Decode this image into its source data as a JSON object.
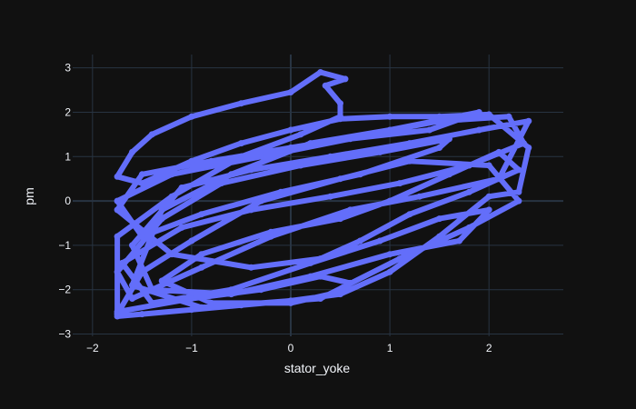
{
  "chart_data": {
    "type": "line",
    "title": "",
    "xlabel": "stator_yoke",
    "ylabel": "pm",
    "xlim": [
      -2.2,
      2.75
    ],
    "ylim": [
      -3.05,
      3.3
    ],
    "x_ticks": [
      -2,
      -1,
      0,
      1,
      2
    ],
    "y_ticks": [
      -3,
      -2,
      -1,
      0,
      1,
      2,
      3
    ],
    "grid": true,
    "legend": "none",
    "series": [
      {
        "color": "#636efa",
        "points": [
          [
            -1.75,
            -2.6
          ],
          [
            -1.5,
            -2.55
          ],
          [
            -1.0,
            -2.45
          ],
          [
            -0.5,
            -2.35
          ],
          [
            0.0,
            -2.25
          ],
          [
            0.5,
            -2.1
          ],
          [
            1.0,
            -1.6
          ],
          [
            1.5,
            -0.8
          ],
          [
            2.0,
            0.1
          ],
          [
            2.3,
            0.2
          ],
          [
            2.4,
            1.2
          ],
          [
            2.0,
            1.95
          ],
          [
            1.5,
            1.9
          ],
          [
            1.0,
            1.9
          ],
          [
            0.5,
            1.85
          ],
          [
            0.0,
            1.6
          ],
          [
            -0.5,
            1.3
          ],
          [
            -1.0,
            0.9
          ],
          [
            -1.5,
            0.4
          ],
          [
            -1.75,
            0.55
          ],
          [
            -1.6,
            1.1
          ],
          [
            -1.4,
            1.5
          ],
          [
            -1.0,
            1.9
          ],
          [
            -0.5,
            2.2
          ],
          [
            0.0,
            2.45
          ],
          [
            0.3,
            2.9
          ],
          [
            0.55,
            2.75
          ],
          [
            0.35,
            2.6
          ],
          [
            0.5,
            2.2
          ],
          [
            0.5,
            1.9
          ],
          [
            0.1,
            1.5
          ],
          [
            -0.5,
            1.0
          ],
          [
            -1.2,
            0.1
          ],
          [
            -1.75,
            -0.8
          ],
          [
            -1.75,
            -2.5
          ],
          [
            -1.0,
            -2.2
          ],
          [
            -0.3,
            -2.0
          ],
          [
            0.3,
            -1.7
          ],
          [
            0.6,
            -1.85
          ],
          [
            0.4,
            -2.1
          ],
          [
            0.0,
            -2.3
          ],
          [
            -0.8,
            -2.3
          ],
          [
            -1.3,
            -1.8
          ],
          [
            -0.9,
            -1.2
          ],
          [
            -0.2,
            -0.7
          ],
          [
            0.5,
            -0.4
          ],
          [
            1.0,
            0.0
          ],
          [
            1.6,
            0.6
          ],
          [
            2.1,
            1.1
          ],
          [
            2.3,
            0.7
          ],
          [
            1.8,
            0.2
          ],
          [
            1.2,
            -0.3
          ],
          [
            0.7,
            -0.9
          ],
          [
            0.3,
            -1.3
          ],
          [
            -0.4,
            -1.5
          ],
          [
            -1.2,
            -1.2
          ],
          [
            -1.75,
            -0.2
          ],
          [
            -1.5,
            0.6
          ],
          [
            -0.8,
            0.9
          ],
          [
            0.0,
            1.2
          ],
          [
            0.8,
            1.5
          ],
          [
            1.5,
            1.8
          ],
          [
            2.2,
            1.9
          ],
          [
            2.35,
            1.3
          ],
          [
            1.8,
            0.8
          ],
          [
            1.1,
            0.4
          ],
          [
            0.4,
            0.1
          ],
          [
            -0.4,
            -0.2
          ],
          [
            -1.1,
            -0.6
          ],
          [
            -1.7,
            -1.4
          ],
          [
            -1.4,
            -2.3
          ],
          [
            -0.6,
            -2.0
          ],
          [
            0.2,
            -1.4
          ],
          [
            0.9,
            -0.9
          ],
          [
            1.5,
            -0.4
          ],
          [
            2.0,
            -0.2
          ],
          [
            1.7,
            -0.9
          ],
          [
            1.0,
            -1.2
          ],
          [
            0.2,
            -1.7
          ],
          [
            -0.6,
            -2.1
          ],
          [
            -1.4,
            -2.0
          ],
          [
            -1.6,
            -1.0
          ],
          [
            -1.1,
            0.3
          ],
          [
            -0.4,
            0.7
          ],
          [
            0.4,
            1.0
          ],
          [
            1.2,
            1.3
          ],
          [
            1.9,
            1.6
          ],
          [
            2.4,
            1.8
          ],
          [
            2.1,
            0.5
          ],
          [
            1.3,
            0.1
          ],
          [
            0.6,
            -0.2
          ],
          [
            -0.2,
            -0.8
          ],
          [
            -0.9,
            -1.5
          ],
          [
            -1.6,
            -2.2
          ],
          [
            -1.75,
            -1.6
          ],
          [
            -1.3,
            -0.4
          ],
          [
            -0.7,
            0.4
          ],
          [
            0.1,
            0.8
          ],
          [
            0.9,
            1.1
          ],
          [
            1.6,
            1.4
          ],
          [
            1.5,
            1.2
          ],
          [
            0.7,
            0.6
          ],
          [
            -0.1,
            0.2
          ],
          [
            -0.9,
            -0.3
          ],
          [
            -1.5,
            -0.8
          ],
          [
            -1.75,
            0.0
          ],
          [
            -1.2,
            0.6
          ],
          [
            -0.3,
            1.0
          ],
          [
            0.6,
            1.4
          ],
          [
            1.4,
            1.6
          ],
          [
            1.9,
            2.0
          ],
          [
            1.0,
            1.6
          ],
          [
            0.2,
            1.3
          ],
          [
            -0.6,
            0.6
          ],
          [
            -1.3,
            -0.2
          ],
          [
            -1.6,
            -1.9
          ],
          [
            -0.9,
            -2.4
          ],
          [
            0.3,
            -2.2
          ],
          [
            1.1,
            -1.3
          ],
          [
            1.8,
            -0.6
          ],
          [
            2.3,
            0.0
          ],
          [
            2.0,
            0.8
          ],
          [
            1.2,
            0.9
          ],
          [
            0.5,
            0.5
          ],
          [
            -0.3,
            0.0
          ],
          [
            -1.0,
            -0.9
          ],
          [
            -1.5,
            -1.6
          ],
          [
            -1.75,
            -2.55
          ]
        ]
      }
    ]
  }
}
